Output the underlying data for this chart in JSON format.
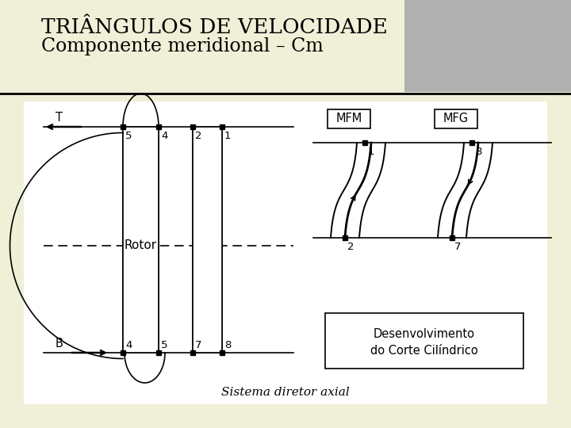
{
  "title_line1": "TRIÂNGULOS DE VELOCIDADE",
  "title_line2": "Componente meridional – Cm",
  "subtitle": "Sistema diretor axial",
  "bg_color": "#f0f0d8",
  "header_bg": "#b0b0b0",
  "content_bg": "#f8f8f8",
  "text_color": "#000000",
  "rotor_label": "Rotor",
  "mfm_label": "MFM",
  "mfg_label": "MFG",
  "dev_label_line1": "Desenvolvimento",
  "dev_label_line2": "do Corte Cilíndrico"
}
